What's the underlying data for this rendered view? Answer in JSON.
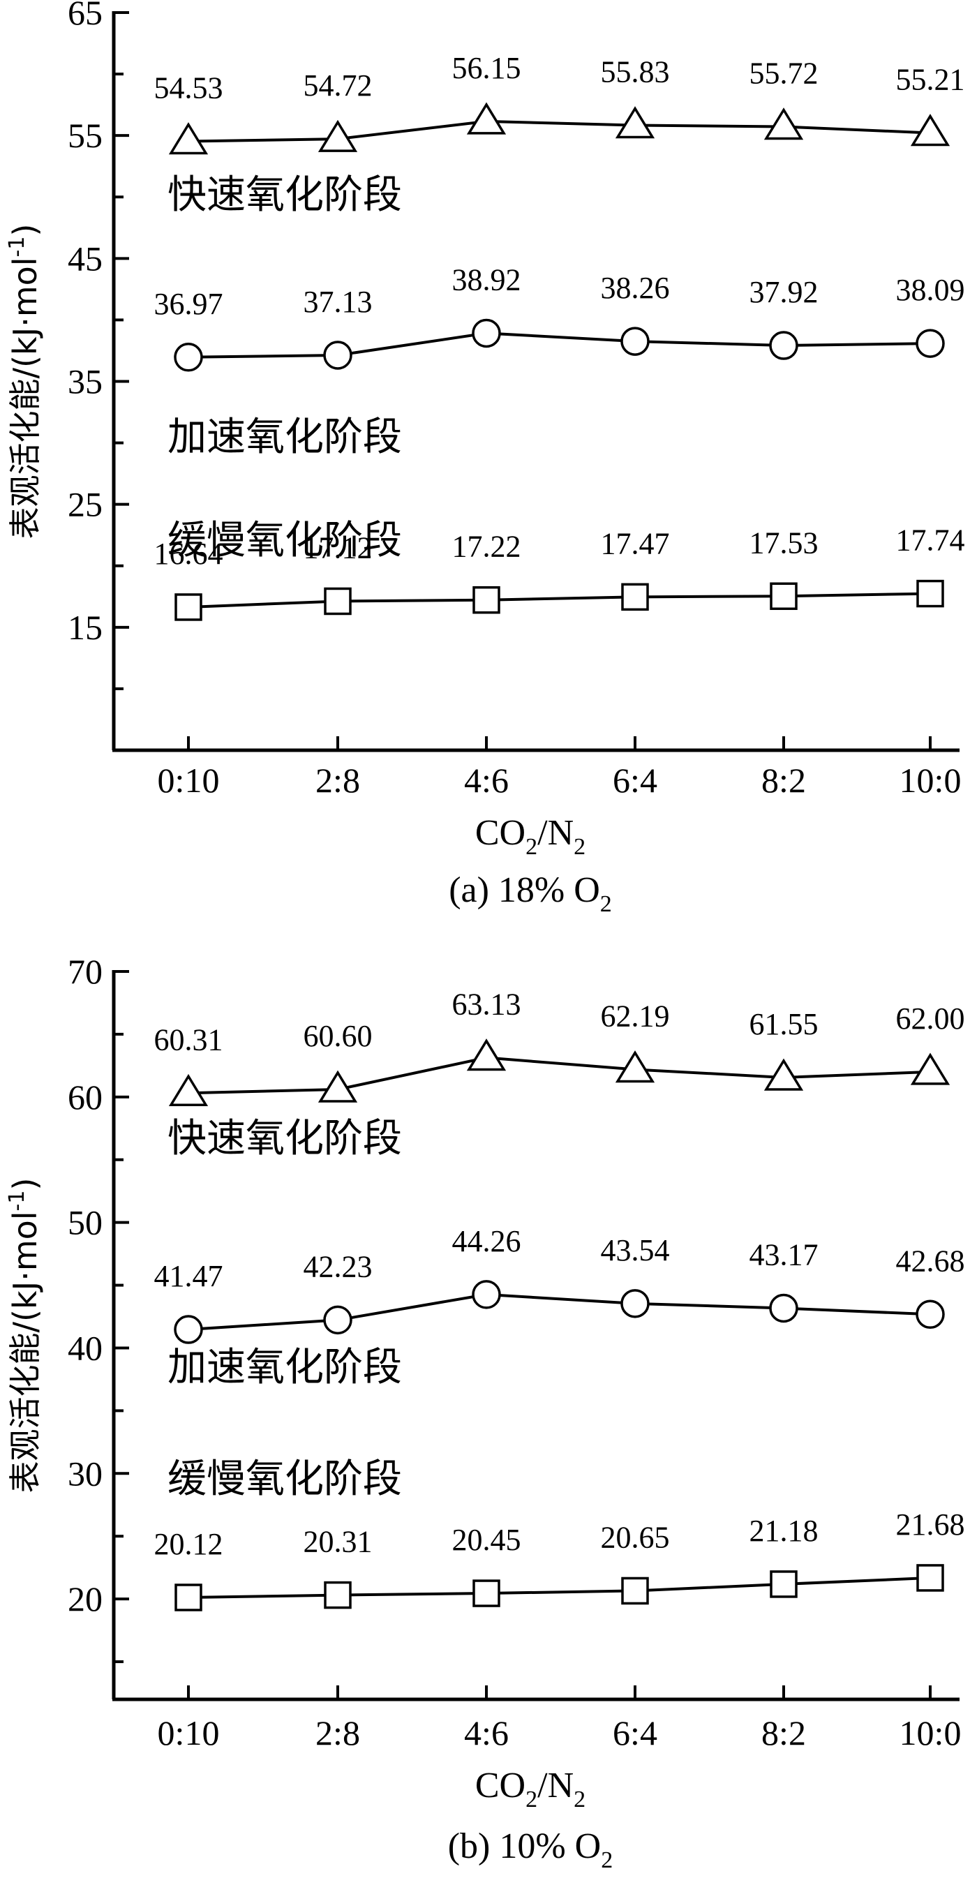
{
  "chart_data": [
    {
      "type": "line",
      "caption": "(a) 18% O",
      "caption_sub": "2",
      "xlabel_main": "CO",
      "xlabel_sub1": "2",
      "xlabel_mid": "/N",
      "xlabel_sub2": "2",
      "ylabel": "表观活化能/(kJ·mol",
      "ylabel_sup": "-1",
      "ylabel_end": ")",
      "categories": [
        "0:10",
        "2:8",
        "4:6",
        "6:4",
        "8:2",
        "10:0"
      ],
      "ylim": [
        5,
        65
      ],
      "yticks": [
        15,
        25,
        35,
        45,
        55,
        65
      ],
      "yminor": [
        10,
        20,
        30,
        40,
        50,
        60
      ],
      "series": [
        {
          "name": "快速氧化阶段",
          "marker": "triangle",
          "values": [
            54.53,
            54.72,
            56.15,
            55.83,
            55.72,
            55.21
          ],
          "labels": [
            "54.53",
            "54.72",
            "56.15",
            "55.83",
            "55.72",
            "55.21"
          ]
        },
        {
          "name": "加速氧化阶段",
          "marker": "circle",
          "values": [
            36.97,
            37.13,
            38.92,
            38.26,
            37.92,
            38.09
          ],
          "labels": [
            "36.97",
            "37.13",
            "38.92",
            "38.26",
            "37.92",
            "38.09"
          ]
        },
        {
          "name": "缓慢氧化阶段",
          "marker": "square",
          "values": [
            16.64,
            17.12,
            17.22,
            17.47,
            17.53,
            17.74
          ],
          "labels": [
            "16.64",
            "17.12",
            "17.22",
            "17.47",
            "17.53",
            "17.74"
          ]
        }
      ]
    },
    {
      "type": "line",
      "caption": "(b) 10% O",
      "caption_sub": "2",
      "xlabel_main": "CO",
      "xlabel_sub1": "2",
      "xlabel_mid": "/N",
      "xlabel_sub2": "2",
      "ylabel": "表观活化能/(kJ·mol",
      "ylabel_sup": "-1",
      "ylabel_end": ")",
      "categories": [
        "0:10",
        "2:8",
        "4:6",
        "6:4",
        "8:2",
        "10:0"
      ],
      "ylim": [
        12,
        70
      ],
      "yticks": [
        20,
        30,
        40,
        50,
        60,
        70
      ],
      "yminor": [
        15,
        25,
        35,
        45,
        55,
        65
      ],
      "series": [
        {
          "name": "快速氧化阶段",
          "marker": "triangle",
          "values": [
            60.31,
            60.6,
            63.13,
            62.19,
            61.55,
            62.0
          ],
          "labels": [
            "60.31",
            "60.60",
            "63.13",
            "62.19",
            "61.55",
            "62.00"
          ]
        },
        {
          "name": "加速氧化阶段",
          "marker": "circle",
          "values": [
            41.47,
            42.23,
            44.26,
            43.54,
            43.17,
            42.68
          ],
          "labels": [
            "41.47",
            "42.23",
            "44.26",
            "43.54",
            "43.17",
            "42.68"
          ]
        },
        {
          "name": "缓慢氧化阶段",
          "marker": "square",
          "values": [
            20.12,
            20.31,
            20.45,
            20.65,
            21.18,
            21.68
          ],
          "labels": [
            "20.12",
            "20.31",
            "20.45",
            "20.65",
            "21.18",
            "21.68"
          ]
        }
      ]
    }
  ]
}
